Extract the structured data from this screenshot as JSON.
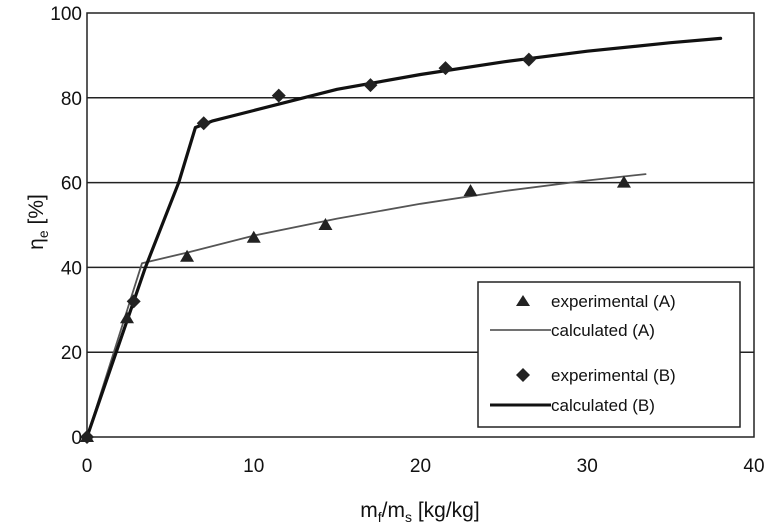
{
  "chart_data": {
    "type": "scatter",
    "xlabel": {
      "main": "m",
      "sub1": "f",
      "sep": "/m",
      "sub2": "s",
      "unit": " [kg/kg]"
    },
    "ylabel": {
      "main": "η",
      "sub": "e",
      "unit": " [%]"
    },
    "xlim": [
      0,
      40
    ],
    "ylim": [
      0,
      100
    ],
    "x_ticks": [
      "0",
      "10",
      "20",
      "30",
      "40"
    ],
    "y_ticks": [
      "0",
      "20",
      "40",
      "60",
      "80",
      "100"
    ],
    "grid": {
      "horizontal": true,
      "vertical": false
    },
    "legend_position": "bottom-right",
    "series": [
      {
        "name": "experimental (A)",
        "kind": "markers",
        "marker": "triangle",
        "points": [
          [
            0,
            0
          ],
          [
            2.4,
            28
          ],
          [
            6,
            42.5
          ],
          [
            10,
            47
          ],
          [
            14.3,
            50
          ],
          [
            23,
            58
          ],
          [
            32.2,
            60
          ]
        ]
      },
      {
        "name": "calculated (A)",
        "kind": "line",
        "points": [
          [
            0,
            0
          ],
          [
            3.3,
            41
          ],
          [
            6,
            43.5
          ],
          [
            10,
            47.5
          ],
          [
            15,
            51.5
          ],
          [
            20,
            55
          ],
          [
            25,
            58
          ],
          [
            30,
            60.5
          ],
          [
            33.5,
            62
          ]
        ]
      },
      {
        "name": "experimental (B)",
        "kind": "markers",
        "marker": "diamond",
        "points": [
          [
            0,
            0
          ],
          [
            2.8,
            32
          ],
          [
            7,
            74
          ],
          [
            11.5,
            80.5
          ],
          [
            17,
            83
          ],
          [
            21.5,
            87
          ],
          [
            26.5,
            89
          ]
        ]
      },
      {
        "name": "calculated (B)",
        "kind": "line",
        "points": [
          [
            0,
            0
          ],
          [
            3.5,
            40
          ],
          [
            5.5,
            60
          ],
          [
            6.5,
            73
          ],
          [
            7.5,
            74.5
          ],
          [
            10,
            77
          ],
          [
            15,
            82
          ],
          [
            20,
            85.5
          ],
          [
            25,
            88.5
          ],
          [
            30,
            91
          ],
          [
            35,
            93
          ],
          [
            38,
            94
          ]
        ]
      }
    ]
  }
}
